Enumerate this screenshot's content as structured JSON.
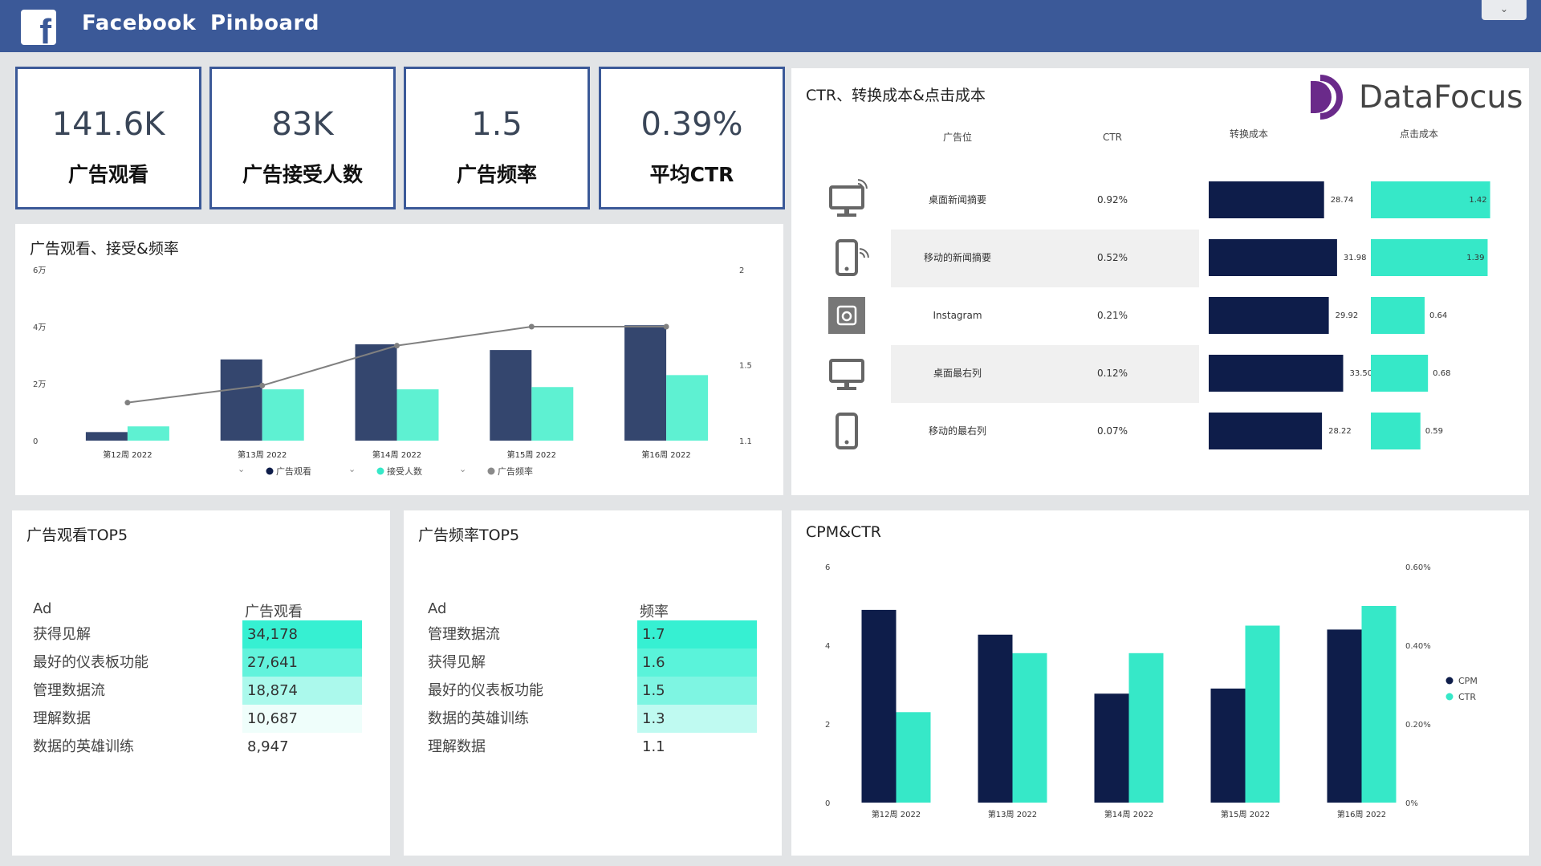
{
  "header": {
    "logo_letter": "f",
    "title": "Facebook  Pinboard",
    "dropdown_glyph": "⌄",
    "brand_color": "#3b5998"
  },
  "kpis": [
    {
      "value": "141.6K",
      "label": "广告观看"
    },
    {
      "value": "83K",
      "label": "广告接受人数"
    },
    {
      "value": "1.5",
      "label": "广告频率"
    },
    {
      "value": "0.39%",
      "label": "平均CTR"
    }
  ],
  "views_panel": {
    "title": "广告观看、接受&频率",
    "chart_data": {
      "type": "bar",
      "categories": [
        "第12周 2022",
        "第13周 2022",
        "第14周 2022",
        "第15周 2022",
        "第16周 2022"
      ],
      "series": [
        {
          "name": "广告观看",
          "type": "bar",
          "color": "#34466e",
          "values": [
            3000,
            28500,
            33800,
            31800,
            40500
          ]
        },
        {
          "name": "接受人数",
          "type": "bar",
          "color": "#5ef1d2",
          "values": [
            5000,
            18000,
            18000,
            18800,
            23000
          ]
        },
        {
          "name": "广告频率",
          "type": "line",
          "color": "#808080",
          "values": [
            1.3,
            1.39,
            1.6,
            1.7,
            1.7
          ]
        }
      ],
      "y_left_ticks": [
        "6万",
        "4万",
        "2万",
        "0"
      ],
      "ylim_left": [
        0,
        60000
      ],
      "y_right_ticks": [
        "2",
        "1.5",
        "1.1"
      ],
      "ylim_right": [
        1.1,
        2.0
      ],
      "legend_position": "bottom"
    },
    "legend": [
      {
        "name": "广告观看",
        "color": "#0e1d4a"
      },
      {
        "name": "接受人数",
        "color": "#36e8c8"
      },
      {
        "name": "广告频率",
        "color": "#8a8a8a"
      }
    ],
    "legend_chevron": "⌄"
  },
  "ctr_panel": {
    "title": "CTR、转换成本&点击成本",
    "logo_text": "DataFocus",
    "headers": [
      "广告位",
      "CTR",
      "转换成本",
      "点击成本"
    ],
    "chart_data": {
      "type": "table",
      "columns": [
        "广告位",
        "CTR",
        "转换成本",
        "点击成本"
      ],
      "rows": [
        {
          "placement": "桌面新闻摘要",
          "icon": "desktop-broadcast-icon",
          "ctr": "0.92%",
          "conversion_cost": 28.74,
          "conversion_label": "28.74",
          "click_cost": 1.42,
          "click_label": "1.42"
        },
        {
          "placement": "移动的新闻摘要",
          "icon": "mobile-broadcast-icon",
          "ctr": "0.52%",
          "conversion_cost": 31.98,
          "conversion_label": "31.98",
          "click_cost": 1.39,
          "click_label": "1.39"
        },
        {
          "placement": "Instagram",
          "icon": "instagram-icon",
          "ctr": "0.21%",
          "conversion_cost": 29.92,
          "conversion_label": "29.92",
          "click_cost": 0.64,
          "click_label": "0.64"
        },
        {
          "placement": "桌面最右列",
          "icon": "desktop-icon",
          "ctr": "0.12%",
          "conversion_cost": 33.5,
          "conversion_label": "33.50",
          "click_cost": 0.68,
          "click_label": "0.68"
        },
        {
          "placement": "移动的最右列",
          "icon": "mobile-icon",
          "ctr": "0.07%",
          "conversion_cost": 28.22,
          "conversion_label": "28.22",
          "click_cost": 0.59,
          "click_label": "0.59"
        }
      ],
      "conversion_color": "#0e1d4a",
      "click_color": "#36e8c8"
    }
  },
  "top_views": {
    "title": "广告观看TOP5",
    "col_ad": "Ad",
    "col_value": "广告观看",
    "rows": [
      {
        "ad": "获得见解",
        "value": "34,178",
        "shade": 1.0
      },
      {
        "ad": "最好的仪表板功能",
        "value": "27,641",
        "shade": 0.78
      },
      {
        "ad": "管理数据流",
        "value": "18,874",
        "shade": 0.42
      },
      {
        "ad": "理解数据",
        "value": "10,687",
        "shade": 0.08
      },
      {
        "ad": "数据的英雄训练",
        "value": "8,947",
        "shade": 0.0
      }
    ]
  },
  "top_freq": {
    "title": "广告频率TOP5",
    "col_ad": "Ad",
    "col_value": "频率",
    "rows": [
      {
        "ad": "管理数据流",
        "value": "1.7",
        "shade": 1.0
      },
      {
        "ad": "获得见解",
        "value": "1.6",
        "shade": 0.82
      },
      {
        "ad": "最好的仪表板功能",
        "value": "1.5",
        "shade": 0.64
      },
      {
        "ad": "数据的英雄训练",
        "value": "1.3",
        "shade": 0.32
      },
      {
        "ad": "理解数据",
        "value": "1.1",
        "shade": 0.0
      }
    ]
  },
  "cpm_panel": {
    "title": "CPM&CTR",
    "chart_data": {
      "type": "bar",
      "categories": [
        "第12周 2022",
        "第13周 2022",
        "第14周 2022",
        "第15周 2022",
        "第16周 2022"
      ],
      "series": [
        {
          "name": "CPM",
          "color": "#0e1d4a",
          "values": [
            4.9,
            4.27,
            2.77,
            2.9,
            4.4
          ]
        },
        {
          "name": "CTR",
          "color": "#36e8c8",
          "values": [
            0.23,
            0.38,
            0.38,
            0.45,
            0.5
          ]
        }
      ],
      "y_left_ticks": [
        "6",
        "4",
        "2",
        "0"
      ],
      "ylim_left": [
        0,
        6
      ],
      "y_right_ticks": [
        "0.60%",
        "0.40%",
        "0.20%",
        "0%"
      ],
      "ylim_right": [
        0,
        0.6
      ],
      "legend_position": "right"
    }
  }
}
